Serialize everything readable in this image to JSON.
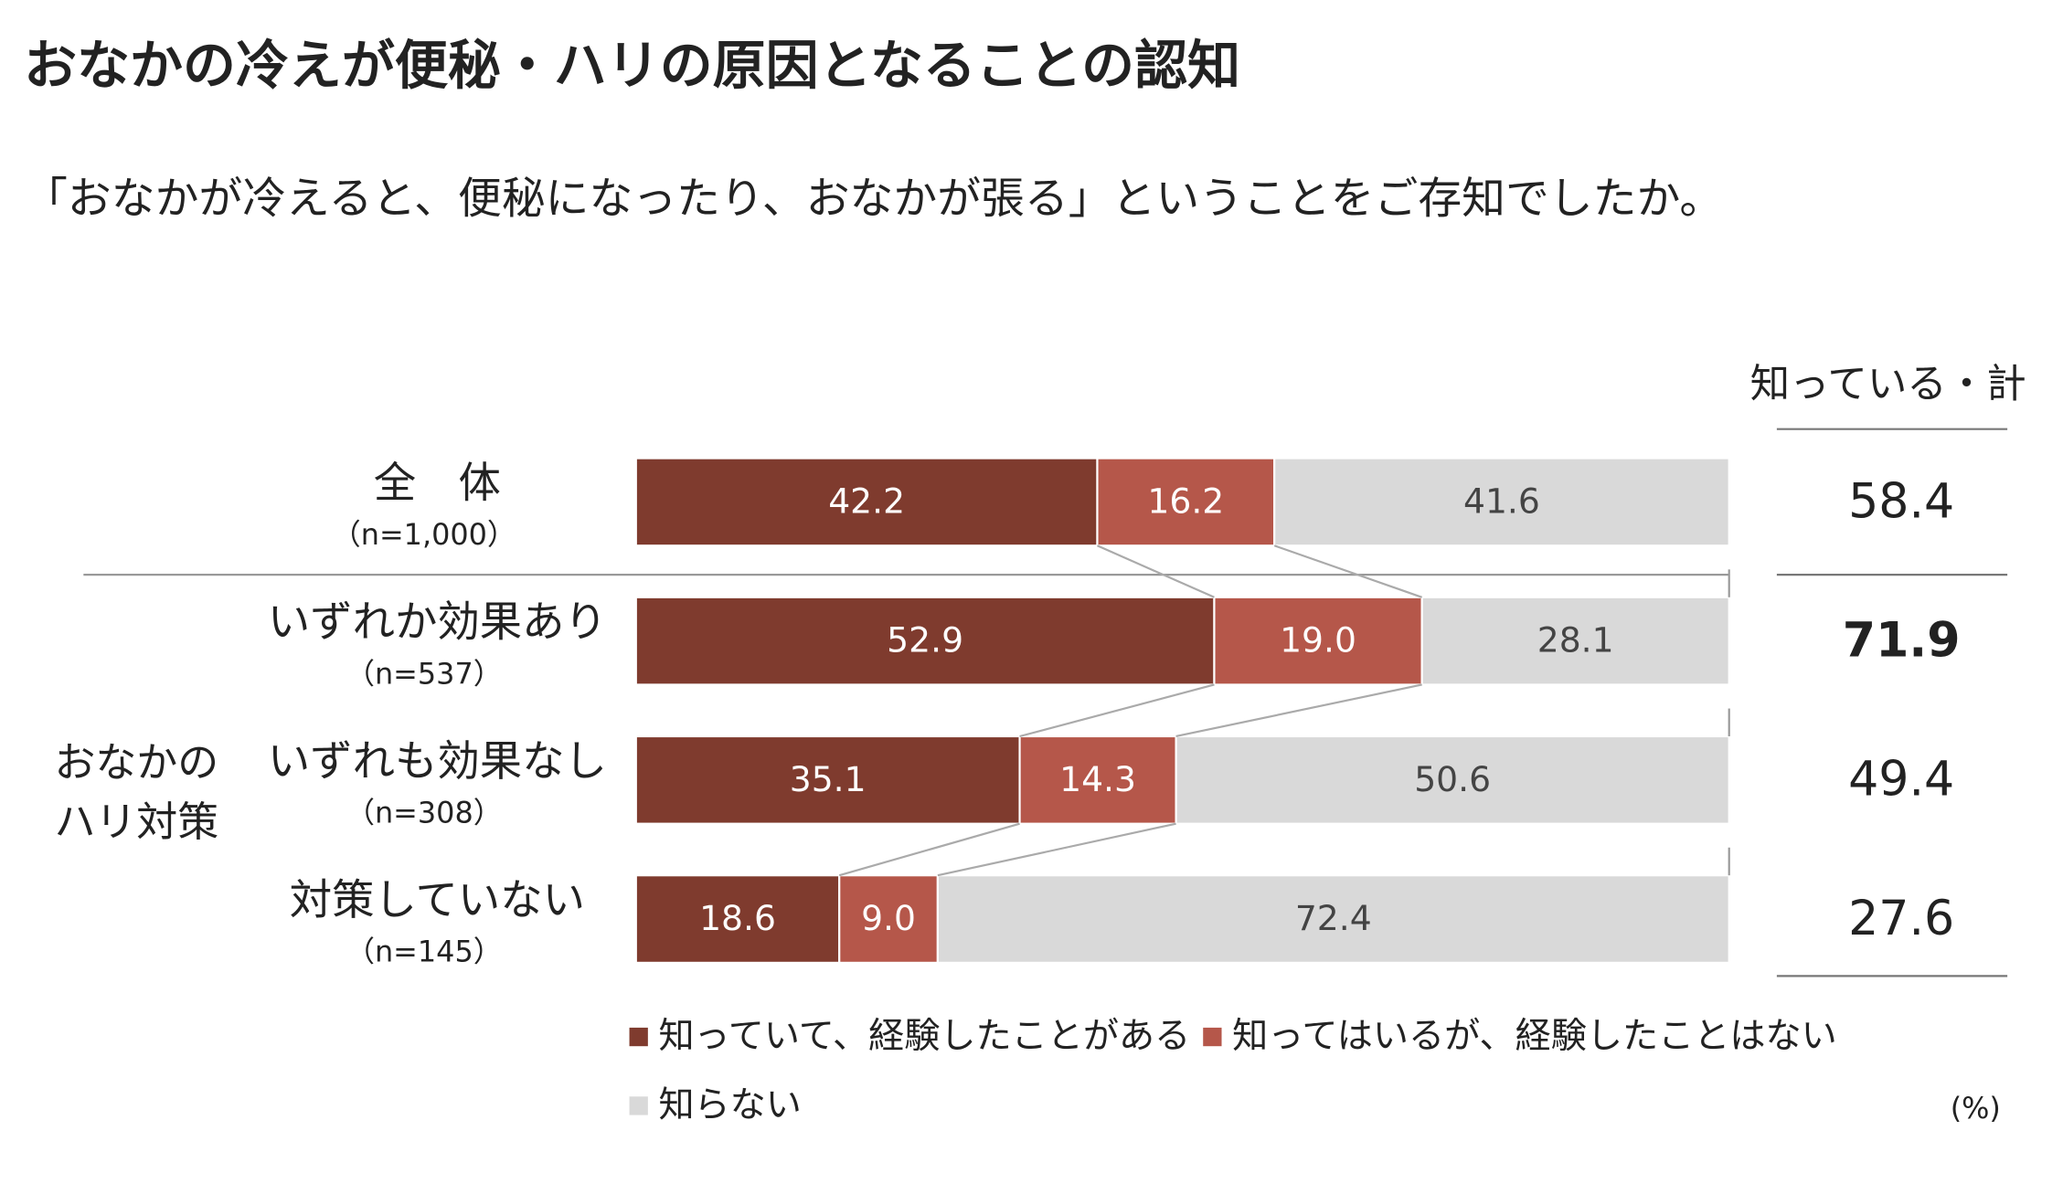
{
  "chart_data": {
    "type": "bar",
    "orientation": "horizontal",
    "stacked": true,
    "title": "おなかの冷えが便秘・ハリの原因となることの認知",
    "subtitle": "「おなかが冷えると、便秘になったり、おなかが張る」ということをご存知でしたか。",
    "categories": [
      "全　体",
      "いずれか効果あり",
      "いずれも効果なし",
      "対策していない"
    ],
    "sample_sizes": [
      "（n=1,000）",
      "（n=537）",
      "（n=308）",
      "（n=145）"
    ],
    "group_label": [
      "おなかの",
      "ハリ対策"
    ],
    "series": [
      {
        "name": "知っていて、経験したことがある",
        "color": "#7f3b2e",
        "values": [
          42.2,
          52.9,
          35.1,
          18.6
        ]
      },
      {
        "name": "知ってはいるが、経験したことはない",
        "color": "#b5574a",
        "values": [
          16.2,
          19,
          14.3,
          9
        ],
        "value_labels": [
          "16.2",
          "19.0",
          "14.3",
          "9.0"
        ]
      },
      {
        "name": "知らない",
        "color": "#d9d9d9",
        "values": [
          41.6,
          28.1,
          50.6,
          72.4
        ]
      }
    ],
    "totals": {
      "label": "知っている・計",
      "values": [
        58.4,
        71.9,
        49.4,
        27.6
      ],
      "bold_index": 1
    },
    "unit": "(%)",
    "xlim": [
      0,
      100
    ]
  }
}
